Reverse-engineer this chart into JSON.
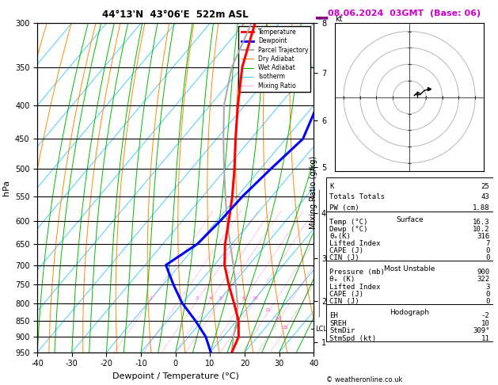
{
  "title_left": "44°13'N  43°06'E  522m ASL",
  "title_right": "08.06.2024  03GMT  (Base: 06)",
  "xlabel": "Dewpoint / Temperature (°C)",
  "ylabel_left": "hPa",
  "pressure_levels": [
    300,
    350,
    400,
    450,
    500,
    550,
    600,
    650,
    700,
    750,
    800,
    850,
    900,
    950
  ],
  "xlim": [
    -40,
    40
  ],
  "pmin": 300,
  "pmax": 950,
  "temp_profile": {
    "pressure": [
      950,
      900,
      850,
      800,
      750,
      700,
      650,
      600,
      550,
      500,
      450,
      400,
      350,
      300
    ],
    "temperature": [
      16.3,
      14.5,
      10.5,
      5.0,
      -1.0,
      -7.0,
      -12.0,
      -16.5,
      -21.5,
      -27.5,
      -34.5,
      -42.0,
      -50.0,
      -57.0
    ]
  },
  "dewp_profile": {
    "pressure": [
      950,
      900,
      850,
      800,
      750,
      700,
      650,
      600,
      550,
      500,
      450,
      400,
      350,
      300
    ],
    "dewpoint": [
      10.2,
      5.0,
      -2.0,
      -10.0,
      -17.0,
      -24.0,
      -20.0,
      -19.0,
      -18.5,
      -17.0,
      -15.0,
      -19.0,
      -21.0,
      -24.0
    ]
  },
  "parcel_trajectory": {
    "pressure": [
      950,
      900,
      850,
      800,
      750,
      700,
      650,
      600,
      550,
      500,
      450,
      400,
      350,
      300
    ],
    "temperature": [
      16.3,
      13.0,
      10.0,
      6.0,
      1.0,
      -4.5,
      -10.5,
      -17.0,
      -23.5,
      -30.5,
      -38.0,
      -46.0,
      -53.0,
      -58.0
    ]
  },
  "colors": {
    "temperature": "#ff0000",
    "dewpoint": "#0000ff",
    "parcel": "#aaaaaa",
    "dry_adiabat": "#ff8800",
    "wet_adiabat": "#00bb00",
    "isotherm": "#44ccff",
    "mixing_ratio": "#ff44cc",
    "background": "#ffffff",
    "grid": "#000000"
  },
  "km_ticks": {
    "pressures": [
      918,
      795,
      683,
      584,
      497,
      422,
      357,
      300
    ],
    "labels": [
      "1",
      "2",
      "3",
      "4",
      "5",
      "6",
      "7",
      "8"
    ]
  },
  "lcl_pressure": 876,
  "mixing_ratio_lines": [
    1,
    2,
    3,
    4,
    5,
    8,
    10,
    15,
    20,
    25
  ],
  "mixing_ratio_label_pressure": 600,
  "stats": {
    "K": 25,
    "Totals_Totals": 43,
    "PW_cm": 1.88,
    "Surface_Temp": 16.3,
    "Surface_Dewp": 10.2,
    "Surface_theta_e": 316,
    "Surface_LI": 7,
    "Surface_CAPE": 0,
    "Surface_CIN": 0,
    "MU_Pressure": 900,
    "MU_theta_e": 322,
    "MU_LI": 3,
    "MU_CAPE": 0,
    "MU_CIN": 0,
    "EH": -2,
    "SREH": 10,
    "StmDir": "309°",
    "StmSpd_kt": 11
  },
  "hodograph": {
    "wind_u": [
      3,
      5,
      7,
      9,
      12
    ],
    "wind_v": [
      1,
      3,
      2,
      4,
      5
    ],
    "rings": [
      10,
      20,
      30,
      40
    ],
    "storm_u": 5,
    "storm_v": 2
  },
  "skew_factor": 1.0,
  "legend_items": [
    [
      "Temperature",
      "#ff0000",
      "solid",
      2.0
    ],
    [
      "Dewpoint",
      "#0000ff",
      "solid",
      2.0
    ],
    [
      "Parcel Trajectory",
      "#aaaaaa",
      "solid",
      1.5
    ],
    [
      "Dry Adiabat",
      "#ff8800",
      "solid",
      0.8
    ],
    [
      "Wet Adiabat",
      "#00bb00",
      "solid",
      0.8
    ],
    [
      "Isotherm",
      "#44ccff",
      "solid",
      0.8
    ],
    [
      "Mixing Ratio",
      "#ff44cc",
      "dotted",
      0.8
    ]
  ]
}
